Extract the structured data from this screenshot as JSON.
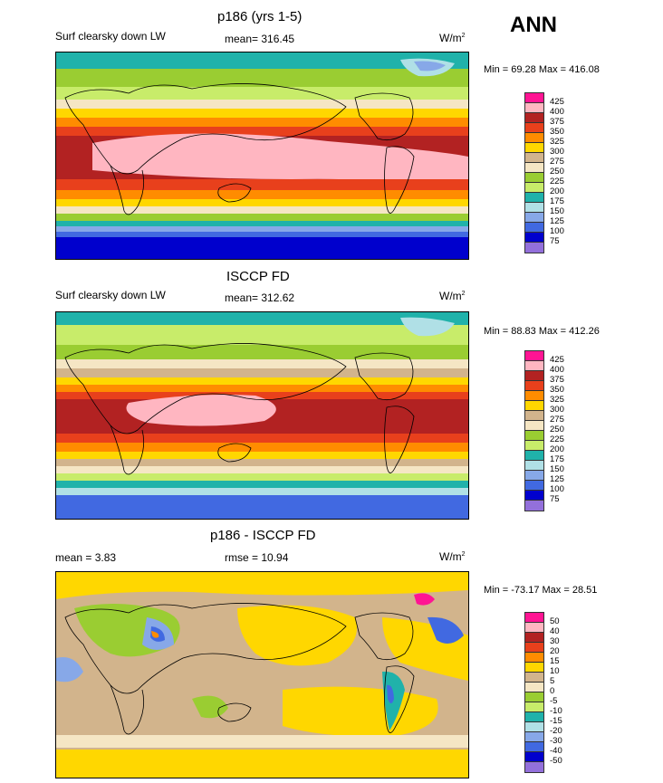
{
  "season": "ANN",
  "panels": [
    {
      "title": "p186 (yrs 1-5)",
      "left_label": "Surf clearsky down LW",
      "stat_label": "mean= 316.45",
      "units_base": "W/m",
      "units_exp": "2",
      "minmax": "Min =  69.28 Max = 416.08",
      "levels": [
        "425",
        "400",
        "375",
        "350",
        "325",
        "300",
        "275",
        "250",
        "225",
        "200",
        "175",
        "150",
        "125",
        "100",
        "75"
      ],
      "colors": [
        "#ff1493",
        "#ffb6c1",
        "#b22222",
        "#e8401c",
        "#ff8c00",
        "#ffd700",
        "#d2b48c",
        "#f5e6c4",
        "#9acd32",
        "#c8ec6a",
        "#20b2aa",
        "#b0e0e6",
        "#87a8e8",
        "#4169e1",
        "#0000cd",
        "#9370db"
      ]
    },
    {
      "title": "ISCCP FD",
      "left_label": "Surf clearsky down LW",
      "stat_label": "mean= 312.62",
      "units_base": "W/m",
      "units_exp": "2",
      "minmax": "Min =  88.83 Max = 412.26",
      "levels": [
        "425",
        "400",
        "375",
        "350",
        "325",
        "300",
        "275",
        "250",
        "225",
        "200",
        "175",
        "150",
        "125",
        "100",
        "75"
      ],
      "colors": [
        "#ff1493",
        "#ffb6c1",
        "#b22222",
        "#e8401c",
        "#ff8c00",
        "#ffd700",
        "#d2b48c",
        "#f5e6c4",
        "#9acd32",
        "#c8ec6a",
        "#20b2aa",
        "#b0e0e6",
        "#87a8e8",
        "#4169e1",
        "#0000cd",
        "#9370db"
      ]
    },
    {
      "title": "p186 - ISCCP FD",
      "left_label": "mean =   3.83",
      "stat_label": "rmse =  10.94",
      "units_base": "W/m",
      "units_exp": "2",
      "minmax": "Min = -73.17 Max =  28.51",
      "levels": [
        "50",
        "40",
        "30",
        "20",
        "15",
        "10",
        "5",
        "0",
        "-5",
        "-10",
        "-15",
        "-20",
        "-30",
        "-40",
        "-50"
      ],
      "colors": [
        "#ff1493",
        "#ffb6c1",
        "#b22222",
        "#e8401c",
        "#ff8c00",
        "#ffd700",
        "#d2b48c",
        "#f5e6c4",
        "#9acd32",
        "#c8ec6a",
        "#20b2aa",
        "#b0e0e6",
        "#87a8e8",
        "#4169e1",
        "#0000cd",
        "#9370db"
      ]
    }
  ]
}
